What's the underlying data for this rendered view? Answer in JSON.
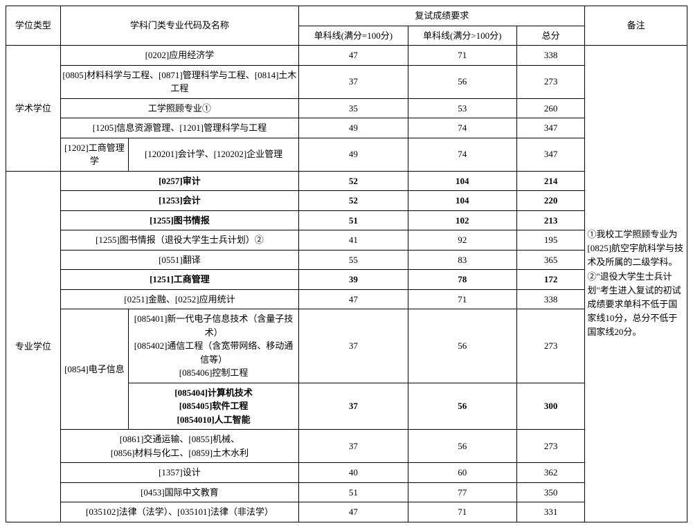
{
  "header": {
    "degree_type": "学位类型",
    "major_header": "学科门类专业代码及名称",
    "score_group": "复试成绩要求",
    "score1": "单科线(满分=100分)",
    "score2": "单科线(满分>100分)",
    "total": "总分",
    "remarks": "备注"
  },
  "degree_labels": {
    "academic": "学术学位",
    "professional": "专业学位"
  },
  "academic_rows": [
    {
      "major": "[0202]应用经济学",
      "s1": "47",
      "s2": "71",
      "total": "338"
    },
    {
      "major": "[0805]材料科学与工程、[0871]管理科学与工程、[0814]土木工程",
      "s1": "37",
      "s2": "56",
      "total": "273"
    },
    {
      "major": "工学照顾专业①",
      "s1": "35",
      "s2": "53",
      "total": "260"
    },
    {
      "major": "[1205]信息资源管理、[1201]管理科学与工程",
      "s1": "49",
      "s2": "74",
      "total": "347"
    }
  ],
  "academic_split": {
    "left": "[1202]工商管理学",
    "right": "[120201]会计学、[120202]企业管理",
    "s1": "49",
    "s2": "74",
    "total": "347"
  },
  "professional_rows_top": [
    {
      "major": "[0257]审计",
      "s1": "52",
      "s2": "104",
      "total": "214",
      "bold": true
    },
    {
      "major": "[1253]会计",
      "s1": "52",
      "s2": "104",
      "total": "220",
      "bold": true
    },
    {
      "major": "[1255]图书情报",
      "s1": "51",
      "s2": "102",
      "total": "213",
      "bold": true
    },
    {
      "major": "[1255]图书情报（退役大学生士兵计划）②",
      "s1": "41",
      "s2": "92",
      "total": "195",
      "bold": false
    },
    {
      "major": "[0551]翻译",
      "s1": "55",
      "s2": "83",
      "total": "365",
      "bold": false
    },
    {
      "major": "[1251]工商管理",
      "s1": "39",
      "s2": "78",
      "total": "172",
      "bold": true
    },
    {
      "major": "[0251]金融、[0252]应用统计",
      "s1": "47",
      "s2": "71",
      "total": "338",
      "bold": false
    }
  ],
  "dianzi": {
    "label": "[0854]电子信息",
    "row1": {
      "major": "[085401]新一代电子信息技术（含量子技术）\n[085402]通信工程（含宽带网络、移动通信等）\n[085406]控制工程",
      "s1": "37",
      "s2": "56",
      "total": "273"
    },
    "row2": {
      "major": "[085404]计算机技术\n[085405]软件工程\n[0854010]人工智能",
      "s1": "37",
      "s2": "56",
      "total": "300"
    }
  },
  "professional_rows_bottom": [
    {
      "major": "[0861]交通运输、[0855]机械、\n[0856]材料与化工、[0859]土木水利",
      "s1": "37",
      "s2": "56",
      "total": "273"
    },
    {
      "major": "[1357]设计",
      "s1": "40",
      "s2": "60",
      "total": "362"
    },
    {
      "major": "[0453]国际中文教育",
      "s1": "51",
      "s2": "77",
      "total": "350"
    },
    {
      "major": "[035102]法律（法学）、[035101]法律（非法学）",
      "s1": "47",
      "s2": "71",
      "total": "331"
    }
  ],
  "remarks_text": "①我校工学照顾专业为[0825]航空宇航科学与技术及所属的二级学科。\n②\"退役大学生士兵计划\"考生进入复试的初试成绩要求单科不低于国家线10分，总分不低于国家线20分。"
}
